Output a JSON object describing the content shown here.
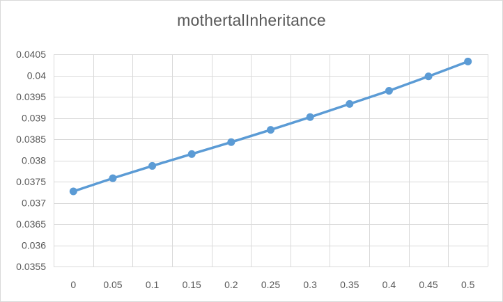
{
  "chart_data": {
    "type": "line",
    "title": "mothertalInheritance",
    "xlabel": "",
    "ylabel": "",
    "x": [
      0,
      0.05,
      0.1,
      0.15,
      0.2,
      0.25,
      0.3,
      0.35,
      0.4,
      0.45,
      0.5
    ],
    "x_tick_labels": [
      "0",
      "0.05",
      "0.1",
      "0.15",
      "0.2",
      "0.25",
      "0.3",
      "0.35",
      "0.4",
      "0.45",
      "0.5"
    ],
    "series": [
      {
        "values": [
          0.03727,
          0.03758,
          0.03787,
          0.03815,
          0.03843,
          0.03872,
          0.03902,
          0.03933,
          0.03964,
          0.03998,
          0.04033
        ]
      }
    ],
    "ylim": [
      0.0355,
      0.0405
    ],
    "y_ticks": [
      0.0355,
      0.036,
      0.0365,
      0.037,
      0.0375,
      0.038,
      0.0385,
      0.039,
      0.0395,
      0.04,
      0.0405
    ],
    "y_tick_labels": [
      "0.0355",
      "0.036",
      "0.0365",
      "0.037",
      "0.0375",
      "0.038",
      "0.0385",
      "0.039",
      "0.0395",
      "0.04",
      "0.0405"
    ],
    "grid": true,
    "legend": "none",
    "colors": {
      "series": "#5b9bd5",
      "grid": "#d9d9d9",
      "text": "#595959"
    }
  }
}
